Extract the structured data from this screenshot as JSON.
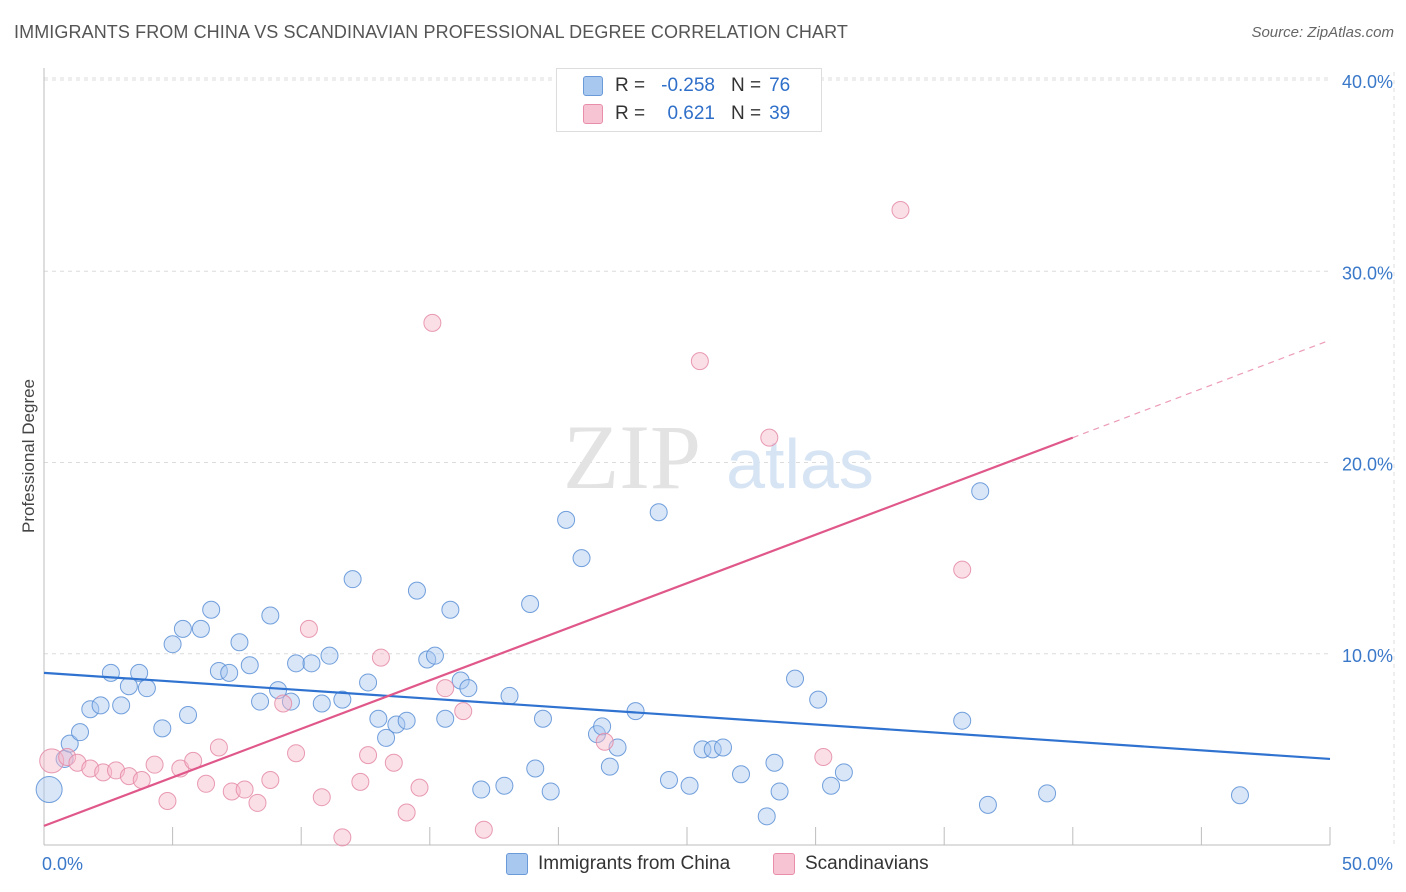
{
  "header": {
    "title": "IMMIGRANTS FROM CHINA VS SCANDINAVIAN PROFESSIONAL DEGREE CORRELATION CHART",
    "source": "Source: ZipAtlas.com"
  },
  "watermark": {
    "zip": "ZIP",
    "atlas": "atlas"
  },
  "legend": {
    "rows": [
      {
        "r_label": "R =",
        "r_value": "-0.258",
        "n_label": "N =",
        "n_value": "76",
        "color": "#a9c8f0"
      },
      {
        "r_label": "R =",
        "r_value": "0.621",
        "n_label": "N =",
        "n_value": "39",
        "color": "#f6b8c9"
      }
    ]
  },
  "bottom_legend": [
    {
      "label": "Immigrants from China",
      "color": "#a9c8f0"
    },
    {
      "label": "Scandinavians",
      "color": "#f6b8c9"
    }
  ],
  "chart_data": {
    "type": "scatter",
    "title": "IMMIGRANTS FROM CHINA VS SCANDINAVIAN PROFESSIONAL DEGREE CORRELATION CHART",
    "xlabel": "",
    "ylabel": "Professional Degree",
    "xlim": [
      0,
      50
    ],
    "ylim": [
      0,
      40
    ],
    "x_tick_labels": [
      "0.0%",
      "50.0%"
    ],
    "y_ticks": [
      10,
      20,
      30,
      40
    ],
    "y_tick_labels": [
      "10.0%",
      "20.0%",
      "30.0%",
      "40.0%"
    ],
    "grid": true,
    "legend_position": "top-center",
    "series": [
      {
        "name": "Immigrants from China",
        "color": "#a9c8f0",
        "edge_color": "#5b8fd6",
        "trend_color": "#2f72d0",
        "trend": {
          "x": [
            0,
            50
          ],
          "y": [
            9.0,
            4.5
          ]
        },
        "points": [
          [
            0.2,
            2.9
          ],
          [
            0.8,
            4.5
          ],
          [
            1.0,
            5.3
          ],
          [
            1.4,
            5.9
          ],
          [
            1.8,
            7.1
          ],
          [
            2.2,
            7.3
          ],
          [
            2.6,
            9.0
          ],
          [
            3.0,
            7.3
          ],
          [
            3.3,
            8.3
          ],
          [
            3.7,
            9.0
          ],
          [
            4.0,
            8.2
          ],
          [
            4.6,
            6.1
          ],
          [
            5.0,
            10.5
          ],
          [
            5.4,
            11.3
          ],
          [
            5.6,
            6.8
          ],
          [
            6.1,
            11.3
          ],
          [
            6.5,
            12.3
          ],
          [
            6.8,
            9.1
          ],
          [
            7.2,
            9.0
          ],
          [
            7.6,
            10.6
          ],
          [
            8.0,
            9.4
          ],
          [
            8.4,
            7.5
          ],
          [
            8.8,
            12.0
          ],
          [
            9.1,
            8.1
          ],
          [
            9.6,
            7.5
          ],
          [
            9.8,
            9.5
          ],
          [
            10.4,
            9.5
          ],
          [
            10.8,
            7.4
          ],
          [
            11.1,
            9.9
          ],
          [
            11.6,
            7.6
          ],
          [
            12.0,
            13.9
          ],
          [
            12.6,
            8.5
          ],
          [
            13.0,
            6.6
          ],
          [
            13.3,
            5.6
          ],
          [
            13.7,
            6.3
          ],
          [
            14.1,
            6.5
          ],
          [
            14.5,
            13.3
          ],
          [
            14.9,
            9.7
          ],
          [
            15.2,
            9.9
          ],
          [
            15.6,
            6.6
          ],
          [
            15.8,
            12.3
          ],
          [
            16.2,
            8.6
          ],
          [
            16.5,
            8.2
          ],
          [
            17.0,
            2.9
          ],
          [
            17.9,
            3.1
          ],
          [
            18.1,
            7.8
          ],
          [
            18.9,
            12.6
          ],
          [
            19.1,
            4.0
          ],
          [
            19.4,
            6.6
          ],
          [
            19.7,
            2.8
          ],
          [
            20.3,
            17.0
          ],
          [
            20.9,
            15.0
          ],
          [
            21.5,
            5.8
          ],
          [
            21.7,
            6.2
          ],
          [
            22.0,
            4.1
          ],
          [
            22.3,
            5.1
          ],
          [
            23.0,
            7.0
          ],
          [
            23.9,
            17.4
          ],
          [
            24.3,
            3.4
          ],
          [
            25.1,
            3.1
          ],
          [
            25.6,
            5.0
          ],
          [
            26.0,
            5.0
          ],
          [
            26.4,
            5.1
          ],
          [
            27.1,
            3.7
          ],
          [
            28.1,
            1.5
          ],
          [
            28.4,
            4.3
          ],
          [
            28.6,
            2.8
          ],
          [
            29.2,
            8.7
          ],
          [
            30.1,
            7.6
          ],
          [
            30.6,
            3.1
          ],
          [
            31.1,
            3.8
          ],
          [
            35.7,
            6.5
          ],
          [
            36.4,
            18.5
          ],
          [
            36.7,
            2.1
          ],
          [
            39.0,
            2.7
          ],
          [
            46.5,
            2.6
          ]
        ]
      },
      {
        "name": "Scandinavians",
        "color": "#f6b8c9",
        "edge_color": "#e48aa6",
        "trend_color": "#e0588a",
        "trend": {
          "x": [
            0,
            40
          ],
          "y": [
            1.0,
            21.3
          ]
        },
        "trend_dashed": {
          "x": [
            40,
            50
          ],
          "y": [
            21.3,
            26.4
          ]
        },
        "points": [
          [
            0.3,
            4.4
          ],
          [
            0.9,
            4.6
          ],
          [
            1.3,
            4.3
          ],
          [
            1.8,
            4.0
          ],
          [
            2.3,
            3.8
          ],
          [
            2.8,
            3.9
          ],
          [
            3.3,
            3.6
          ],
          [
            3.8,
            3.4
          ],
          [
            4.3,
            4.2
          ],
          [
            4.8,
            2.3
          ],
          [
            5.3,
            4.0
          ],
          [
            5.8,
            4.4
          ],
          [
            6.3,
            3.2
          ],
          [
            6.8,
            5.1
          ],
          [
            7.3,
            2.8
          ],
          [
            7.8,
            2.9
          ],
          [
            8.3,
            2.2
          ],
          [
            8.8,
            3.4
          ],
          [
            9.3,
            7.4
          ],
          [
            9.8,
            4.8
          ],
          [
            10.3,
            11.3
          ],
          [
            10.8,
            2.5
          ],
          [
            11.6,
            0.4
          ],
          [
            12.3,
            3.3
          ],
          [
            12.6,
            4.7
          ],
          [
            13.1,
            9.8
          ],
          [
            13.6,
            4.3
          ],
          [
            14.1,
            1.7
          ],
          [
            14.6,
            3.0
          ],
          [
            15.1,
            27.3
          ],
          [
            15.6,
            8.2
          ],
          [
            16.3,
            7.0
          ],
          [
            17.1,
            0.8
          ],
          [
            21.8,
            5.4
          ],
          [
            25.5,
            25.3
          ],
          [
            28.2,
            21.3
          ],
          [
            30.3,
            4.6
          ],
          [
            33.3,
            33.2
          ],
          [
            35.7,
            14.4
          ]
        ]
      }
    ]
  }
}
